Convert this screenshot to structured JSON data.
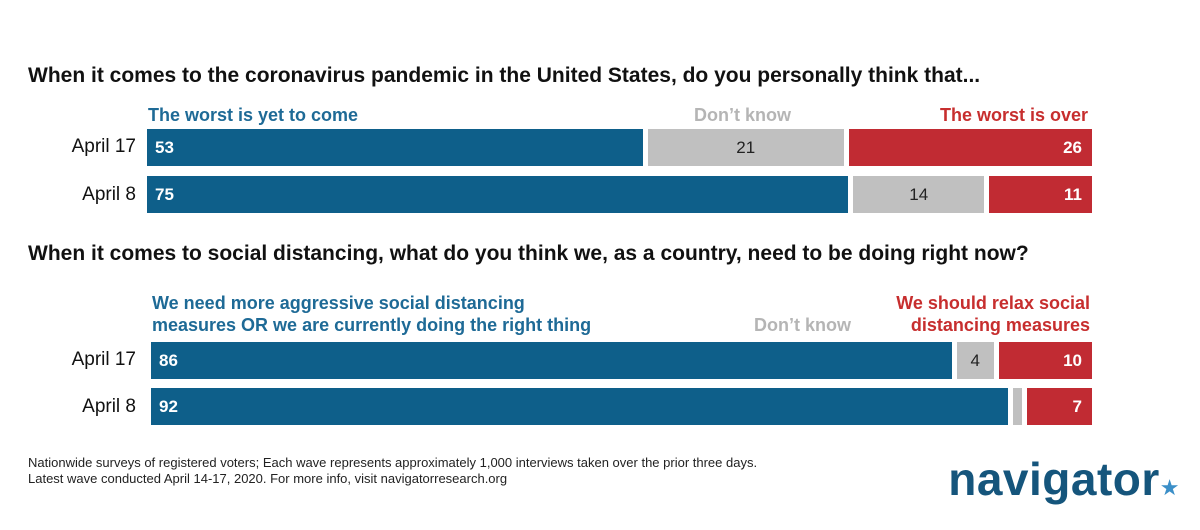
{
  "chart_data": [
    {
      "type": "bar",
      "orientation": "horizontal",
      "stacked": true,
      "title": "When it comes to the coronavirus pandemic in the United States, do you personally think that...",
      "categories": [
        "April 17",
        "April 8"
      ],
      "series": [
        {
          "name": "The worst is yet to come",
          "values": [
            53,
            75
          ],
          "color": "#0e5f8a"
        },
        {
          "name": "Don’t know",
          "values": [
            21,
            14
          ],
          "color": "#c0c0c0"
        },
        {
          "name": "The worst is over",
          "values": [
            26,
            11
          ],
          "color": "#c12b33"
        }
      ],
      "xlim": [
        0,
        100
      ]
    },
    {
      "type": "bar",
      "orientation": "horizontal",
      "stacked": true,
      "title": "When it comes to social distancing, what do you think we, as a country, need to be doing right now?",
      "categories": [
        "April 17",
        "April 8"
      ],
      "series": [
        {
          "name": "We need more aggressive social distancing measures OR we are currently doing the right thing",
          "values": [
            86,
            92
          ],
          "color": "#0e5f8a"
        },
        {
          "name": "Don’t know",
          "values": [
            4,
            1
          ],
          "color": "#c0c0c0"
        },
        {
          "name": "We should relax social distancing measures",
          "values": [
            10,
            7
          ],
          "color": "#c12b33"
        }
      ],
      "xlim": [
        0,
        100
      ]
    }
  ],
  "legend_text": {
    "chart1": {
      "left": "The worst is yet to come",
      "middle": "Don’t know",
      "right": "The worst is over"
    },
    "chart2": {
      "left_line1": "We need more aggressive social distancing",
      "left_line2": "measures OR we are currently doing the right thing",
      "middle": "Don’t know",
      "right_line1": "We should relax social",
      "right_line2": "distancing measures"
    }
  },
  "footer": {
    "line1": "Nationwide surveys of registered voters; Each wave represents approximately 1,000 interviews taken over the prior three days.",
    "line2": "Latest wave conducted April 14-17, 2020. For more info, visit navigatorresearch.org"
  },
  "logo": {
    "text": "navigator",
    "mark": "★"
  }
}
